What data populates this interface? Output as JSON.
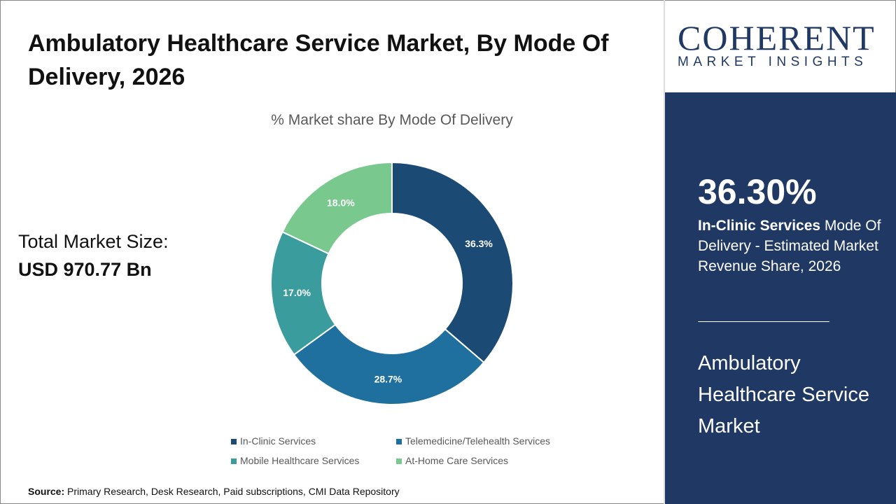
{
  "title": "Ambulatory Healthcare Service Market, By Mode Of Delivery, 2026",
  "total": {
    "label": "Total Market Size:",
    "value": "USD 970.77 Bn"
  },
  "source": {
    "label": "Source:",
    "text": " Primary Research, Desk Research, Paid subscriptions, CMI Data Repository"
  },
  "logo": {
    "name": "COHERENT",
    "tagline": "MARKET INSIGHTS"
  },
  "side": {
    "percent": "36.30%",
    "highlight": "In-Clinic Services",
    "desc": " Mode Of Delivery - Estimated Market Revenue Share, 2026",
    "market": "Ambulatory Healthcare Service Market"
  },
  "chart_data": {
    "type": "pie",
    "donut": true,
    "title": "% Market share By Mode Of Delivery",
    "categories": [
      "In-Clinic Services",
      "Telemedicine/Telehealth Services",
      "Mobile Healthcare Services",
      "At-Home Care Services"
    ],
    "values": [
      36.3,
      28.7,
      17.0,
      18.0
    ],
    "labels": [
      "36.3%",
      "28.7%",
      "17.0%",
      "18.0%"
    ],
    "colors": [
      "#1b4b74",
      "#20709f",
      "#3a9c9c",
      "#79c98f"
    ],
    "legend": "bottom"
  }
}
